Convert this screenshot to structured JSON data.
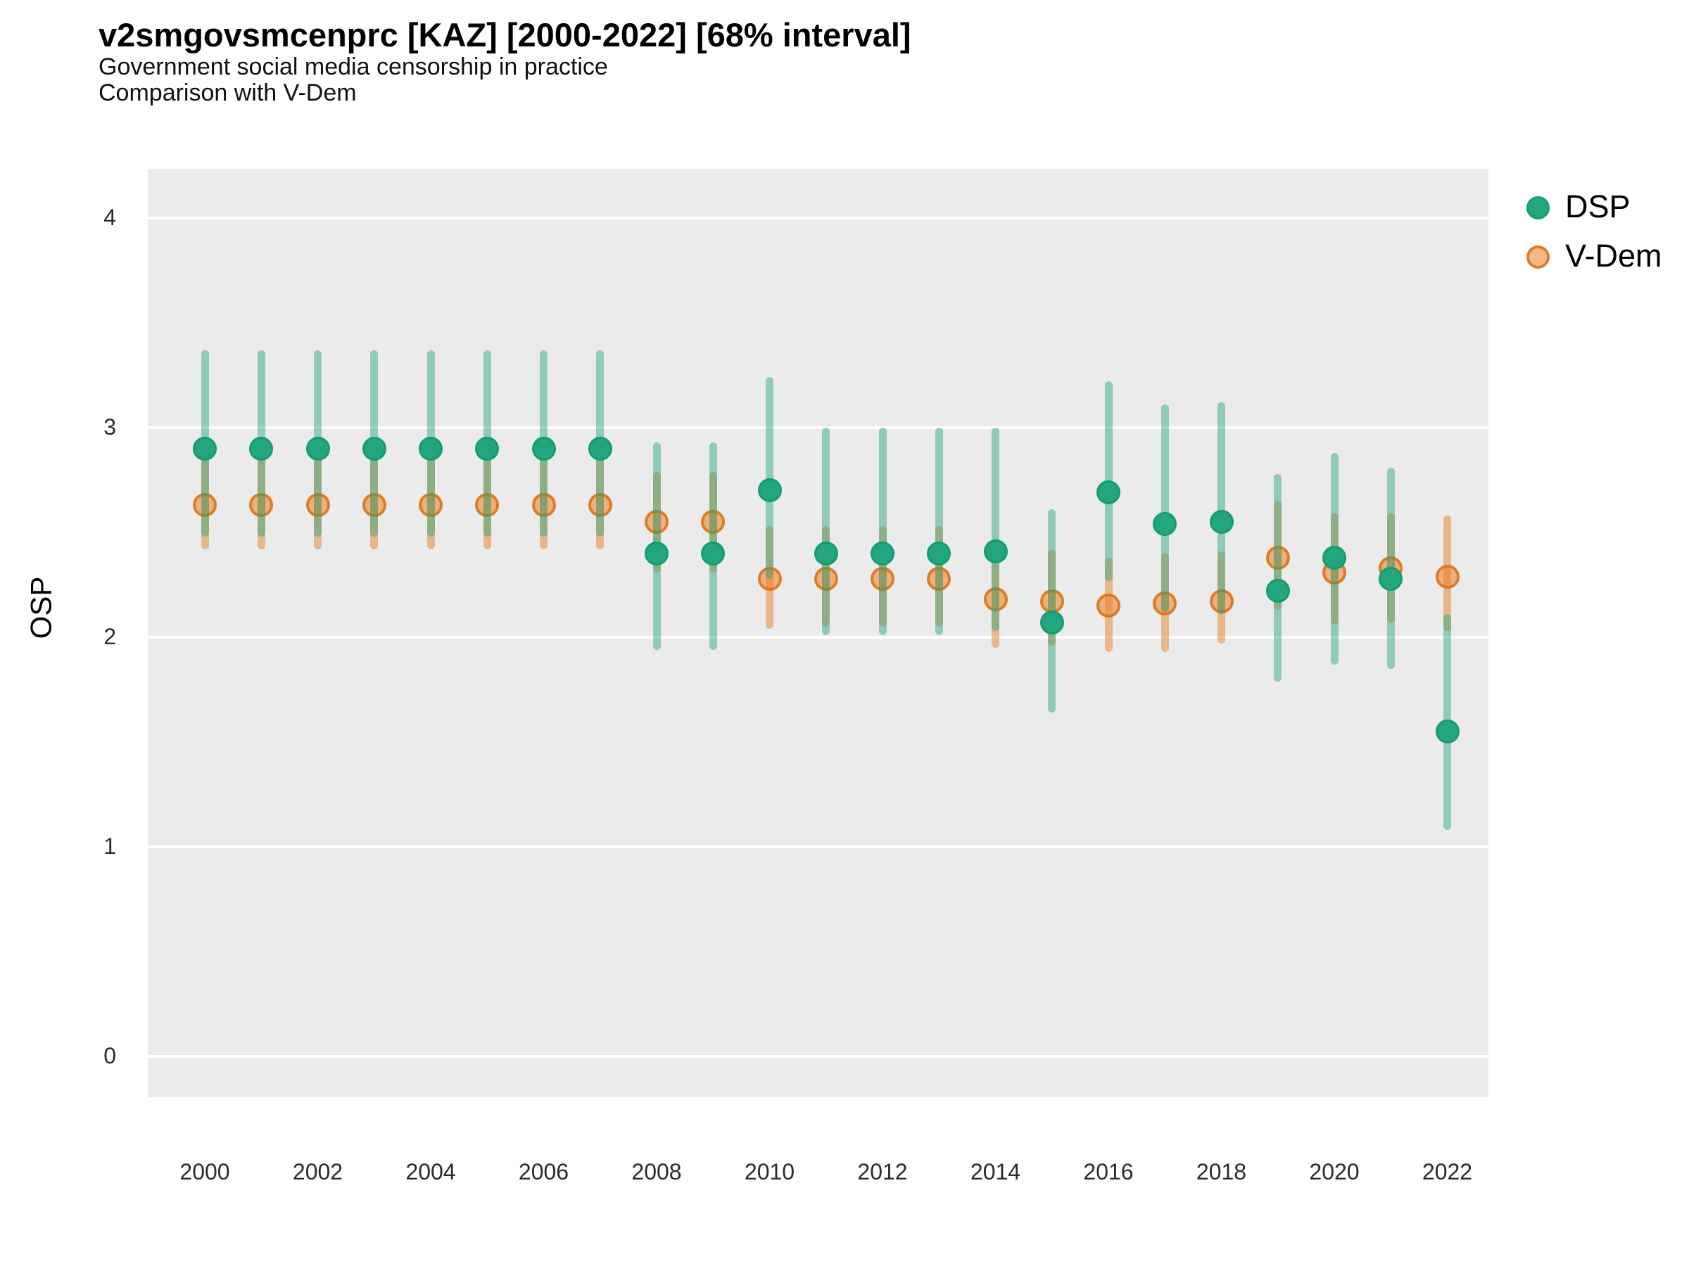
{
  "chart_data": {
    "type": "pointrange",
    "title": "v2smgovsmcenprc [KAZ] [2000-2022] [68% interval]",
    "subtitle1": "Government social media censorship in practice",
    "subtitle2": "Comparison with V-Dem",
    "ylabel": "OSP",
    "xlabel": "",
    "interval": "68%",
    "grid": "major-horizontal-white-on-gray",
    "legend_position": "right",
    "x_tick_labels": [
      "2000",
      "2002",
      "2004",
      "2006",
      "2008",
      "2010",
      "2012",
      "2014",
      "2016",
      "2018",
      "2020",
      "2022"
    ],
    "y_tick_labels": [
      "0",
      "1",
      "2",
      "3",
      "4"
    ],
    "y_tick_values": [
      0,
      1,
      2,
      3,
      4
    ],
    "ylim": [
      -0.35,
      4.4
    ],
    "colors": {
      "dsp_point": "#23A67F",
      "dsp_bar": "#8FCBB9",
      "vdem_point": "#ECAE7D",
      "vdem_bar": "#E9B689",
      "panel_bg": "#EBEBEB",
      "gridline": "#FFFFFF"
    },
    "legend": [
      {
        "id": "dsp",
        "label": "DSP"
      },
      {
        "id": "vdem",
        "label": "V-Dem"
      }
    ],
    "series": [
      {
        "name": "DSP",
        "points": [
          {
            "year": 2000,
            "est": 2.9,
            "lo": 2.48,
            "hi": 3.37
          },
          {
            "year": 2001,
            "est": 2.9,
            "lo": 2.48,
            "hi": 3.37
          },
          {
            "year": 2002,
            "est": 2.9,
            "lo": 2.48,
            "hi": 3.37
          },
          {
            "year": 2003,
            "est": 2.9,
            "lo": 2.48,
            "hi": 3.37
          },
          {
            "year": 2004,
            "est": 2.9,
            "lo": 2.48,
            "hi": 3.37
          },
          {
            "year": 2005,
            "est": 2.9,
            "lo": 2.48,
            "hi": 3.37
          },
          {
            "year": 2006,
            "est": 2.9,
            "lo": 2.48,
            "hi": 3.37
          },
          {
            "year": 2007,
            "est": 2.9,
            "lo": 2.48,
            "hi": 3.37
          },
          {
            "year": 2008,
            "est": 2.4,
            "lo": 1.94,
            "hi": 2.93
          },
          {
            "year": 2009,
            "est": 2.4,
            "lo": 1.94,
            "hi": 2.93
          },
          {
            "year": 2010,
            "est": 2.7,
            "lo": 2.28,
            "hi": 3.24
          },
          {
            "year": 2011,
            "est": 2.4,
            "lo": 2.01,
            "hi": 3.0
          },
          {
            "year": 2012,
            "est": 2.4,
            "lo": 2.01,
            "hi": 3.0
          },
          {
            "year": 2013,
            "est": 2.4,
            "lo": 2.01,
            "hi": 3.0
          },
          {
            "year": 2014,
            "est": 2.41,
            "lo": 2.03,
            "hi": 3.0
          },
          {
            "year": 2015,
            "est": 2.07,
            "lo": 1.64,
            "hi": 2.61
          },
          {
            "year": 2016,
            "est": 2.69,
            "lo": 2.27,
            "hi": 3.22
          },
          {
            "year": 2017,
            "est": 2.54,
            "lo": 2.12,
            "hi": 3.11
          },
          {
            "year": 2018,
            "est": 2.55,
            "lo": 2.11,
            "hi": 3.12
          },
          {
            "year": 2019,
            "est": 2.22,
            "lo": 1.79,
            "hi": 2.78
          },
          {
            "year": 2020,
            "est": 2.38,
            "lo": 1.87,
            "hi": 2.88
          },
          {
            "year": 2021,
            "est": 2.28,
            "lo": 1.85,
            "hi": 2.81
          },
          {
            "year": 2022,
            "est": 1.55,
            "lo": 1.08,
            "hi": 2.11
          }
        ]
      },
      {
        "name": "V-Dem",
        "points": [
          {
            "year": 2000,
            "est": 2.63,
            "lo": 2.42,
            "hi": 2.86
          },
          {
            "year": 2001,
            "est": 2.63,
            "lo": 2.42,
            "hi": 2.86
          },
          {
            "year": 2002,
            "est": 2.63,
            "lo": 2.42,
            "hi": 2.86
          },
          {
            "year": 2003,
            "est": 2.63,
            "lo": 2.42,
            "hi": 2.86
          },
          {
            "year": 2004,
            "est": 2.63,
            "lo": 2.42,
            "hi": 2.86
          },
          {
            "year": 2005,
            "est": 2.63,
            "lo": 2.42,
            "hi": 2.86
          },
          {
            "year": 2006,
            "est": 2.63,
            "lo": 2.42,
            "hi": 2.86
          },
          {
            "year": 2007,
            "est": 2.63,
            "lo": 2.42,
            "hi": 2.86
          },
          {
            "year": 2008,
            "est": 2.55,
            "lo": 2.31,
            "hi": 2.79
          },
          {
            "year": 2009,
            "est": 2.55,
            "lo": 2.31,
            "hi": 2.79
          },
          {
            "year": 2010,
            "est": 2.28,
            "lo": 2.04,
            "hi": 2.53
          },
          {
            "year": 2011,
            "est": 2.28,
            "lo": 2.05,
            "hi": 2.53
          },
          {
            "year": 2012,
            "est": 2.28,
            "lo": 2.05,
            "hi": 2.53
          },
          {
            "year": 2013,
            "est": 2.28,
            "lo": 2.05,
            "hi": 2.53
          },
          {
            "year": 2014,
            "est": 2.18,
            "lo": 1.95,
            "hi": 2.41
          },
          {
            "year": 2015,
            "est": 2.17,
            "lo": 1.96,
            "hi": 2.42
          },
          {
            "year": 2016,
            "est": 2.15,
            "lo": 1.93,
            "hi": 2.38
          },
          {
            "year": 2017,
            "est": 2.16,
            "lo": 1.93,
            "hi": 2.4
          },
          {
            "year": 2018,
            "est": 2.17,
            "lo": 1.97,
            "hi": 2.41
          },
          {
            "year": 2019,
            "est": 2.38,
            "lo": 2.13,
            "hi": 2.65
          },
          {
            "year": 2020,
            "est": 2.31,
            "lo": 2.06,
            "hi": 2.59
          },
          {
            "year": 2021,
            "est": 2.33,
            "lo": 2.07,
            "hi": 2.59
          },
          {
            "year": 2022,
            "est": 2.29,
            "lo": 2.03,
            "hi": 2.58
          }
        ]
      }
    ]
  }
}
